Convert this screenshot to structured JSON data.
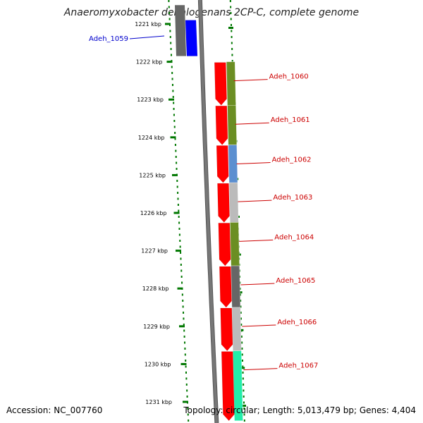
{
  "title": "Anaeromyxobacter dehalogenans 2CP-C, complete genome",
  "accession": "Accession: NC_007760",
  "summary": "Topology: circular; Length: 5,013,479 bp; Genes: 4,404",
  "colors": {
    "tick_green": "#007700",
    "backbone": "#777777",
    "label_red": "#cc0000",
    "label_blue": "#0000cc",
    "forward_gene": "#ff0000"
  },
  "kbp_ticks": [
    {
      "kbp": 1221,
      "label": "1221 kbp"
    },
    {
      "kbp": 1222,
      "label": "1222 kbp"
    },
    {
      "kbp": 1223,
      "label": "1223 kbp"
    },
    {
      "kbp": 1224,
      "label": "1224 kbp"
    },
    {
      "kbp": 1225,
      "label": "1225 kbp"
    },
    {
      "kbp": 1226,
      "label": "1226 kbp"
    },
    {
      "kbp": 1227,
      "label": "1227 kbp"
    },
    {
      "kbp": 1228,
      "label": "1228 kbp"
    },
    {
      "kbp": 1229,
      "label": "1229 kbp"
    },
    {
      "kbp": 1230,
      "label": "1230 kbp"
    },
    {
      "kbp": 1231,
      "label": "1231 kbp"
    }
  ],
  "genes": [
    {
      "name": "Adeh_1059",
      "start_kbp": 1220.9,
      "end_kbp": 1221.85,
      "strand": "-",
      "color": "#0000ff"
    },
    {
      "name": "Adeh_1060",
      "start_kbp": 1222.0,
      "end_kbp": 1223.15,
      "strand": "+",
      "color": "#ff0000"
    },
    {
      "name": "Adeh_1061",
      "start_kbp": 1223.15,
      "end_kbp": 1224.2,
      "strand": "+",
      "color": "#ff0000"
    },
    {
      "name": "Adeh_1062",
      "start_kbp": 1224.2,
      "end_kbp": 1225.2,
      "strand": "+",
      "color": "#ff0000"
    },
    {
      "name": "Adeh_1063",
      "start_kbp": 1225.2,
      "end_kbp": 1226.25,
      "strand": "+",
      "color": "#ff0000"
    },
    {
      "name": "Adeh_1064",
      "start_kbp": 1226.25,
      "end_kbp": 1227.4,
      "strand": "+",
      "color": "#ff0000"
    },
    {
      "name": "Adeh_1065",
      "start_kbp": 1227.4,
      "end_kbp": 1228.5,
      "strand": "+",
      "color": "#ff0000"
    },
    {
      "name": "Adeh_1066",
      "start_kbp": 1228.5,
      "end_kbp": 1229.65,
      "strand": "+",
      "color": "#ff0000"
    },
    {
      "name": "Adeh_1067",
      "start_kbp": 1229.65,
      "end_kbp": 1231.5,
      "strand": "+",
      "color": "#ff0000"
    }
  ],
  "cog_segments": [
    {
      "start_kbp": 1222.0,
      "end_kbp": 1222.5,
      "color": "#00cccc"
    },
    {
      "start_kbp": 1222.0,
      "end_kbp": 1223.15,
      "color": "#6b8e23"
    },
    {
      "start_kbp": 1223.15,
      "end_kbp": 1224.2,
      "color": "#6b8e23"
    },
    {
      "start_kbp": 1224.2,
      "end_kbp": 1225.2,
      "color": "#5b8fd0"
    },
    {
      "start_kbp": 1225.2,
      "end_kbp": 1226.25,
      "color": "#bbbbbb"
    },
    {
      "start_kbp": 1226.25,
      "end_kbp": 1227.4,
      "color": "#6b8e23"
    },
    {
      "start_kbp": 1227.4,
      "end_kbp": 1228.5,
      "color": "#666666"
    },
    {
      "start_kbp": 1228.5,
      "end_kbp": 1229.65,
      "color": "#bbbbbb"
    },
    {
      "start_kbp": 1229.65,
      "end_kbp": 1231.5,
      "color": "#22eeaa"
    }
  ],
  "upstream_segments": [
    {
      "start_kbp": 1220.5,
      "end_kbp": 1221.85,
      "color": "#666666"
    }
  ]
}
